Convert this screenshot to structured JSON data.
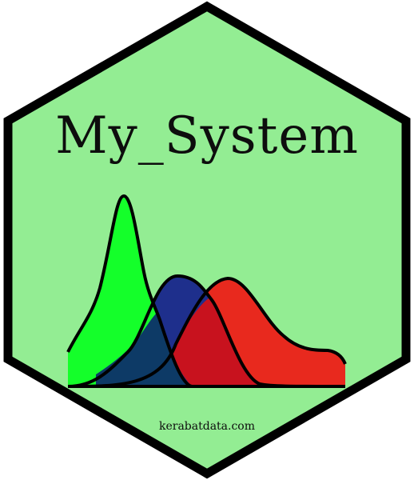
{
  "sticker": {
    "title": "My_System",
    "url": "kerabatdata.com"
  },
  "colors": {
    "background": "#93ed93",
    "border": "#000000",
    "green_density": "#14ff2a",
    "blue_density": "#1e2f8c",
    "red_density": "#e8291e",
    "overlap_dark": "#0d3a66",
    "overlap_red": "#c8121e"
  }
}
